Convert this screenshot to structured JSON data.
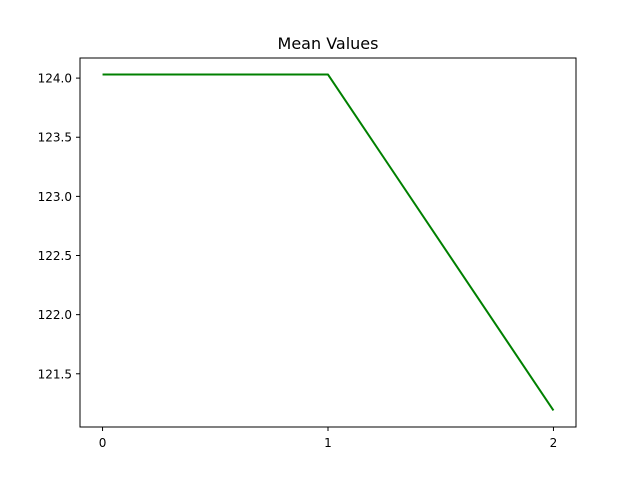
{
  "colors": {
    "line": "#008000",
    "axes": "#000000",
    "background": "#ffffff"
  },
  "chart_data": {
    "type": "line",
    "title": "Mean Values",
    "xlabel": "",
    "ylabel": "",
    "x": [
      0,
      1,
      2
    ],
    "xticks": [
      "0",
      "1",
      "2"
    ],
    "yticks": [
      "121.5",
      "122.0",
      "122.5",
      "123.0",
      "123.5",
      "124.0"
    ],
    "ytick_values": [
      121.5,
      122.0,
      122.5,
      123.0,
      123.5,
      124.0
    ],
    "series": [
      {
        "values": [
          124.03,
          124.03,
          121.19
        ],
        "color": "#008000"
      }
    ],
    "xlim": [
      -0.1,
      2.1
    ],
    "ylim": [
      121.05,
      124.17
    ],
    "grid": false,
    "legend": "none"
  }
}
